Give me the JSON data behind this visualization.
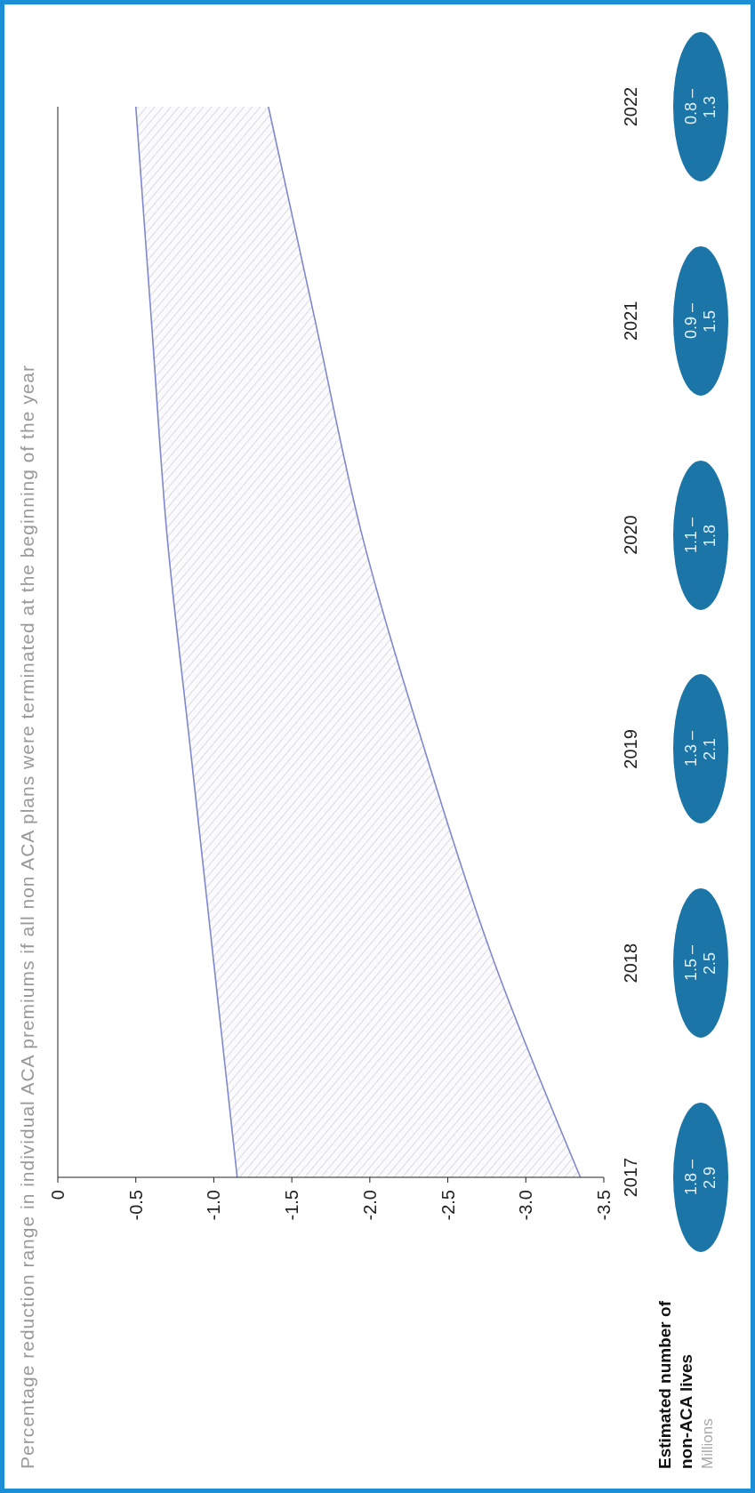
{
  "chart_data": {
    "type": "line",
    "title": "Percentage reduction range in individual ACA premiums if all non ACA plans were terminated at the beginning of the year",
    "orientation": "horizontal",
    "categories": [
      "2022",
      "2021",
      "2020",
      "2019",
      "2018",
      "2017"
    ],
    "series": [
      {
        "color": "#8088cc",
        "values": [
          -0.5,
          -0.6,
          -0.7,
          -0.85,
          -1.0,
          -1.15
        ],
        "upper": [
          -0.5,
          -0.6,
          -0.7,
          -0.85,
          -1.0,
          -1.15
        ],
        "lower": [
          -1.35,
          -1.65,
          -1.95,
          -2.35,
          -2.8,
          -3.35
        ]
      },
      {
        "color": "#8088cc",
        "values": [
          -1.35,
          -1.65,
          -1.95,
          -2.35,
          -2.8,
          -3.35
        ]
      }
    ],
    "xlim": [
      0,
      -3.5
    ],
    "xticks": [
      0,
      -0.5,
      {
        "value": -1,
        "label": "-1.0"
      },
      -1.5,
      {
        "value": -2,
        "label": "-2.0"
      },
      -2.5,
      {
        "value": -3,
        "label": "-3.0"
      },
      -3.5
    ],
    "annotations": [
      "0.8 – 1.3",
      "0.9 – 1.5",
      "1.1 – 1.8",
      "1.3 – 2.1",
      "1.5 – 2.5",
      "1.8 – 2.9",
      "Estimated number of non-ACA lives",
      "Millions"
    ]
  }
}
